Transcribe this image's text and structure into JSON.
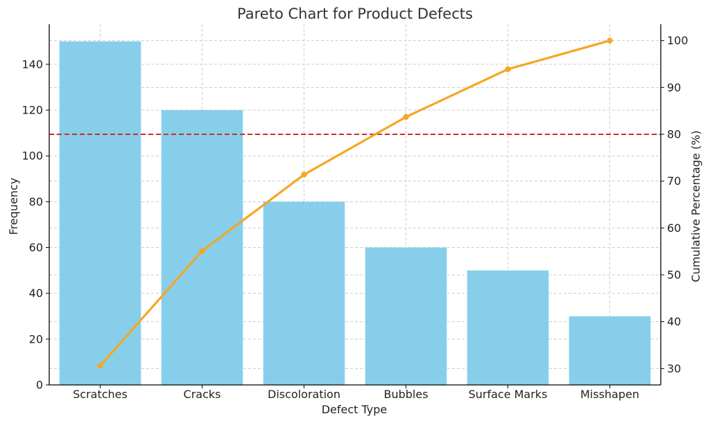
{
  "chart_data": {
    "type": "bar",
    "title": "Pareto Chart for Product Defects",
    "xlabel": "Defect Type",
    "ylabel": "Frequency",
    "y2label": "Cumulative Percentage (%)",
    "categories": [
      "Scratches",
      "Cracks",
      "Discoloration",
      "Bubbles",
      "Surface Marks",
      "Misshapen"
    ],
    "series": [
      {
        "type": "bar",
        "axis": "left",
        "values": [
          150,
          120,
          80,
          60,
          50,
          30
        ]
      },
      {
        "type": "line",
        "axis": "right",
        "values": [
          30.6,
          55.1,
          71.4,
          83.7,
          93.9,
          100.0
        ]
      }
    ],
    "threshold": {
      "axis": "right",
      "value": 80
    },
    "ylim": [
      0,
      157.5
    ],
    "y2lim": [
      26.5,
      103.5
    ],
    "yticks": [
      0,
      20,
      40,
      60,
      80,
      100,
      120,
      140
    ],
    "y2ticks": [
      30,
      40,
      50,
      60,
      70,
      80,
      90,
      100
    ],
    "grid": true,
    "colors": {
      "bar": "#87ceeb",
      "line": "#f5a623",
      "threshold": "#d62728"
    }
  }
}
